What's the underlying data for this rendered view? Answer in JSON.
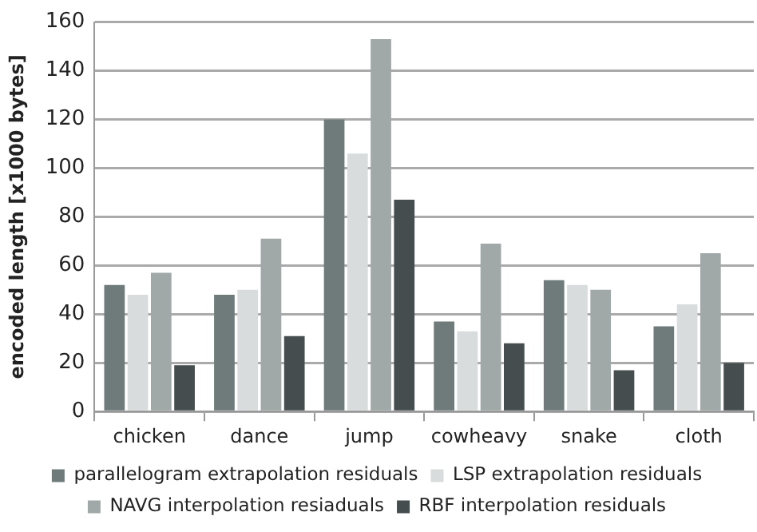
{
  "chart_data": {
    "type": "bar",
    "ylabel": "encoded length [x1000 bytes]",
    "categories": [
      "chicken",
      "dance",
      "jump",
      "cowheavy",
      "snake",
      "cloth"
    ],
    "series": [
      {
        "name": "parallelogram extrapolation residuals",
        "color": "#6f7b7b",
        "values": [
          52,
          48,
          120,
          37,
          54,
          35
        ]
      },
      {
        "name": "LSP extrapolation residuals",
        "color": "#d8dcdc",
        "values": [
          48,
          50,
          106,
          33,
          52,
          44
        ]
      },
      {
        "name": "NAVG interpolation resiaduals",
        "color": "#a0a8a8",
        "values": [
          57,
          71,
          153,
          69,
          50,
          65
        ]
      },
      {
        "name": "RBF interpolation residuals",
        "color": "#464d4e",
        "values": [
          19,
          31,
          87,
          28,
          17,
          20
        ]
      }
    ],
    "ylim": [
      0,
      160
    ],
    "yticks": [
      0,
      20,
      40,
      60,
      80,
      100,
      120,
      140,
      160
    ],
    "grid": "y",
    "legend": "bottom"
  }
}
